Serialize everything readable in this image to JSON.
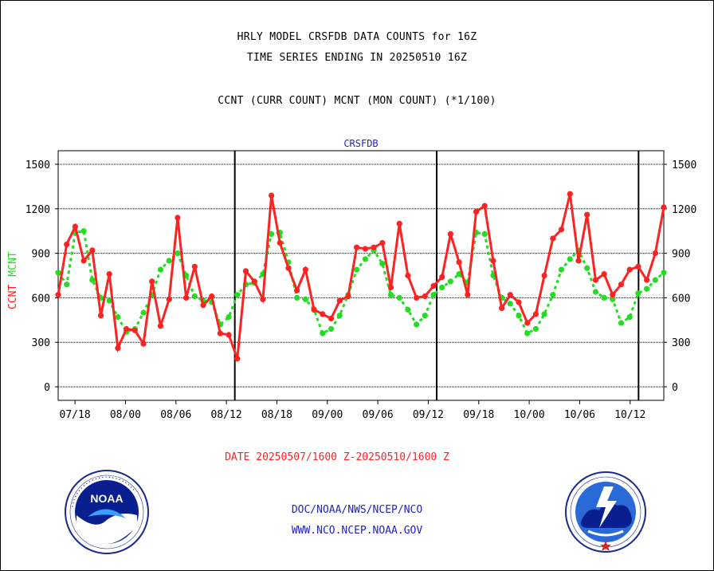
{
  "header": {
    "line1": "HRLY MODEL CRSFDB DATA COUNTS for 16Z",
    "line2": "TIME SERIES ENDING IN 20250510 16Z",
    "line3": "CCNT (CURR COUNT) MCNT (MON COUNT) (*1/100)"
  },
  "date_range": "DATE 20250507/1600 Z-20250510/1600 Z",
  "footer": {
    "line1": "DOC/NOAA/NWS/NCEP/NCO",
    "line2": "WWW.NCO.NCEP.NOAA.GOV"
  },
  "logos": {
    "left": {
      "icon": "noaa-logo-icon",
      "text": "NOAA"
    },
    "right": {
      "icon": "nws-logo-icon"
    }
  },
  "colors": {
    "ccnt": "#ff2222",
    "mcnt": "#22dd22",
    "title": "#2222cc",
    "daterange": "#ff2222"
  },
  "chart_data": {
    "type": "line",
    "title": "CRSFDB",
    "ylabel": "CCNT  MCNT",
    "ylim": [
      -80,
      1580
    ],
    "yticks": [
      0,
      300,
      600,
      900,
      1200,
      1500
    ],
    "x_tick_labels": [
      "07/18",
      "08/00",
      "08/06",
      "08/12",
      "08/18",
      "09/00",
      "09/06",
      "09/12",
      "09/18",
      "10/00",
      "10/06",
      "10/12"
    ],
    "x_tick_hours": [
      2,
      8,
      14,
      20,
      26,
      32,
      38,
      44,
      50,
      56,
      62,
      68
    ],
    "day_boundary_hours": [
      21,
      45,
      69
    ],
    "x_range_hours": [
      0,
      72
    ],
    "grid": true,
    "series": [
      {
        "name": "CCNT",
        "values": [
          620,
          960,
          1080,
          850,
          920,
          480,
          760,
          260,
          390,
          380,
          290,
          710,
          410,
          590,
          1140,
          600,
          810,
          550,
          610,
          360,
          350,
          190,
          780,
          710,
          590,
          1290,
          970,
          800,
          650,
          790,
          520,
          490,
          460,
          580,
          610,
          940,
          930,
          940,
          970,
          670,
          1100,
          750,
          600,
          610,
          680,
          740,
          1030,
          840,
          620,
          1180,
          1220,
          850,
          530,
          620,
          570,
          430,
          490,
          750,
          1000,
          1060,
          1300,
          850,
          1160,
          720,
          760,
          620,
          690,
          790,
          810,
          720,
          900,
          1210
        ]
      },
      {
        "name": "MCNT",
        "values": [
          770,
          690,
          1040,
          1050,
          720,
          600,
          580,
          470,
          370,
          390,
          500,
          620,
          790,
          850,
          900,
          750,
          610,
          580,
          570,
          420,
          470,
          620,
          690,
          700,
          760,
          1030,
          1040,
          840,
          600,
          590,
          520,
          360,
          390,
          480,
          620,
          790,
          860,
          920,
          830,
          620,
          600,
          520,
          420,
          480,
          620,
          670,
          710,
          760,
          700,
          1040,
          1030,
          750,
          600,
          560,
          480,
          360,
          390,
          490,
          620,
          790,
          860,
          920,
          800,
          640,
          600,
          590,
          430,
          470,
          630,
          660,
          720,
          770
        ]
      }
    ]
  }
}
